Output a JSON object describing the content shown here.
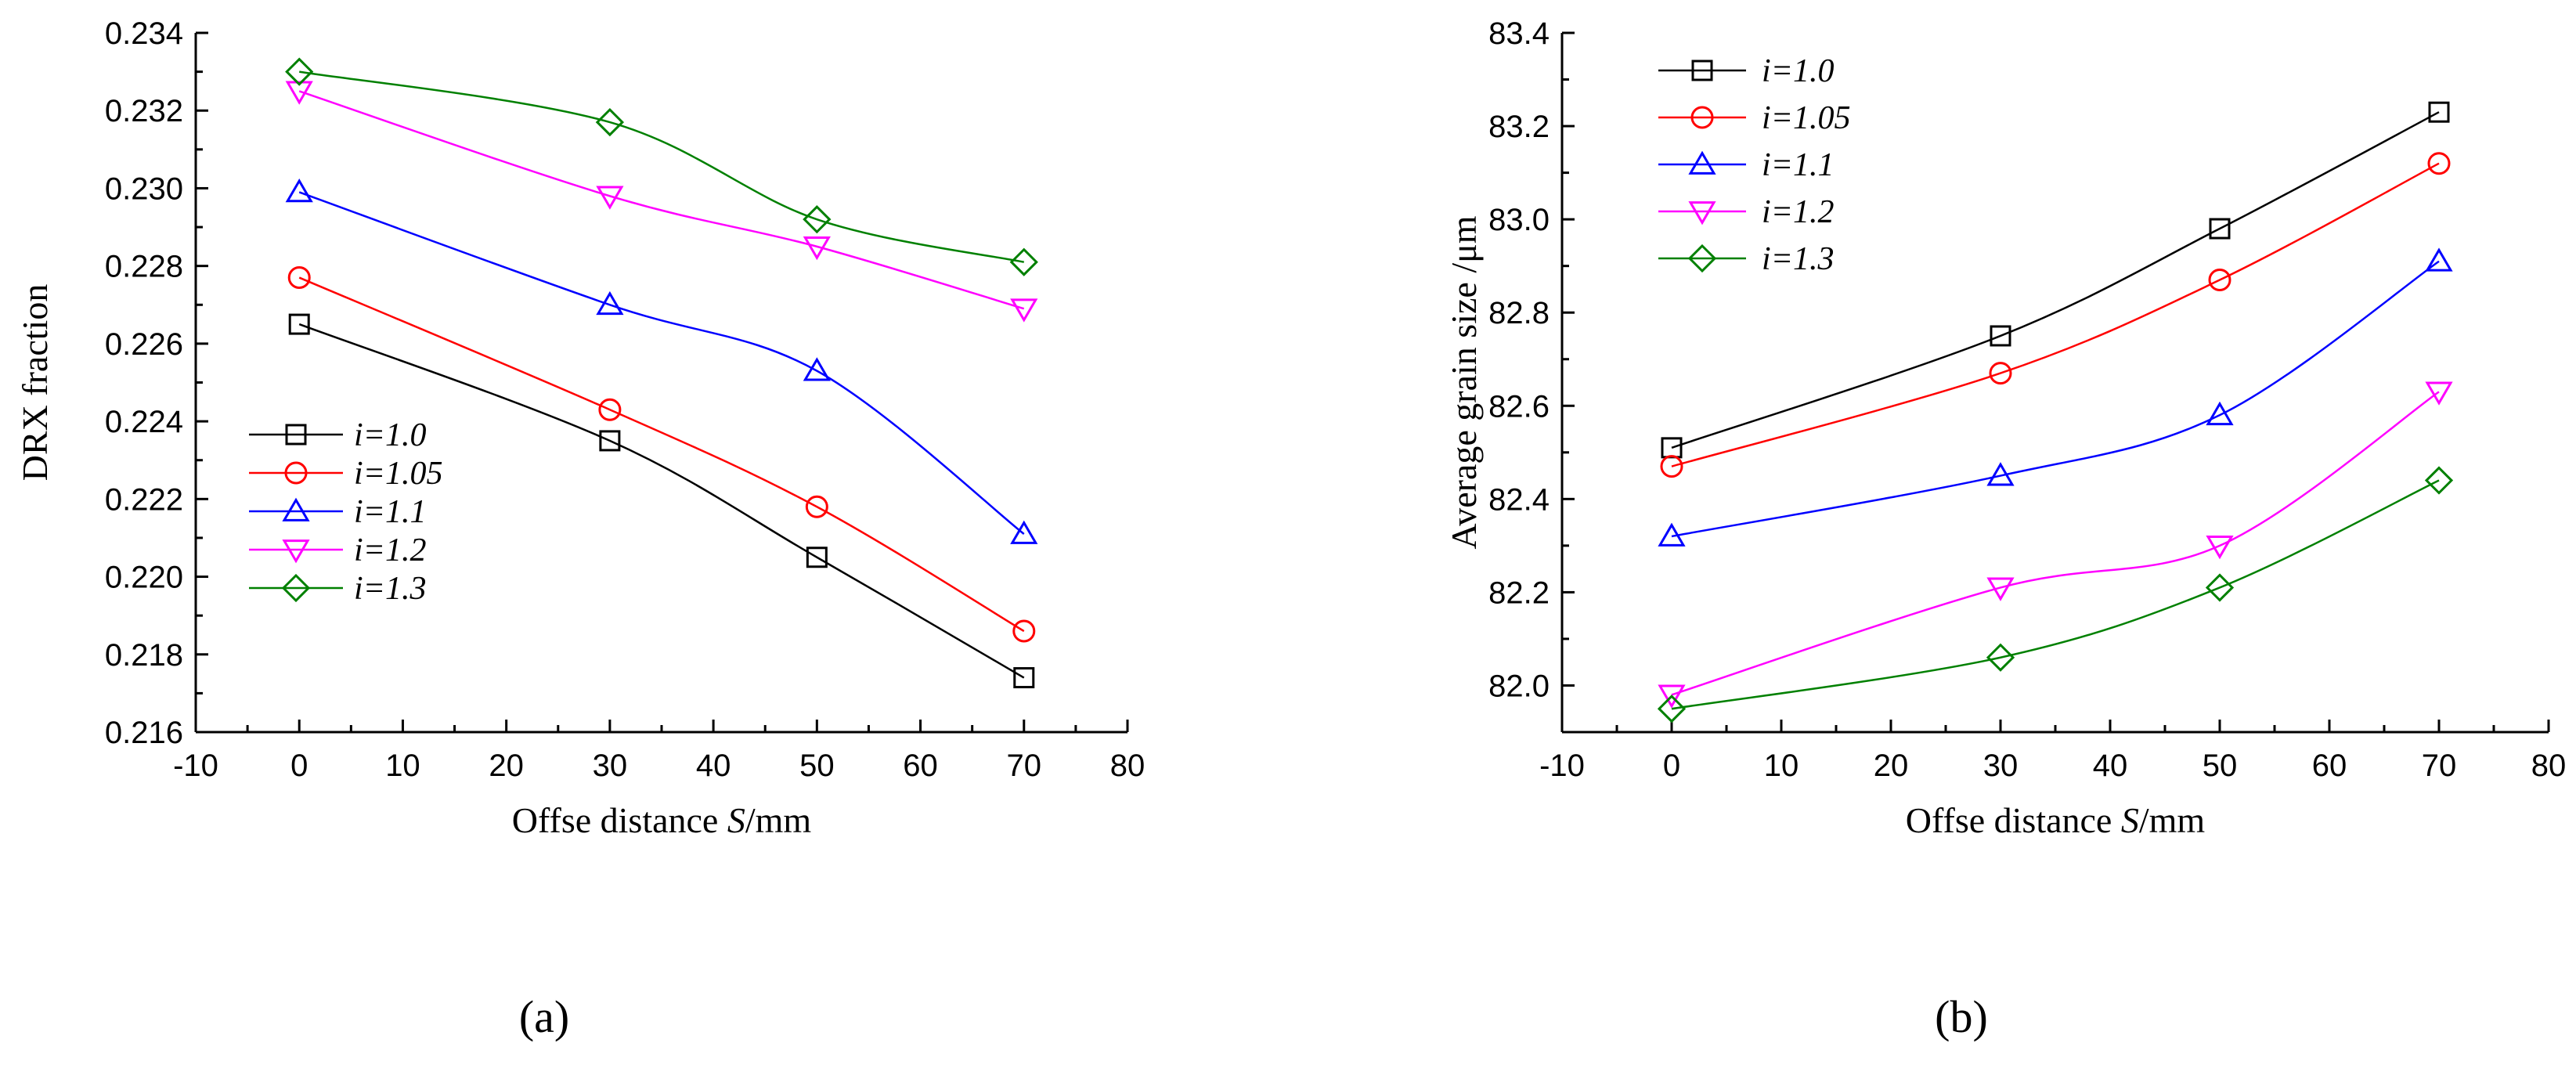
{
  "panel_labels": {
    "a": "(a)",
    "b": "(b)"
  },
  "chart_data": [
    {
      "id": "a",
      "type": "line",
      "title": "",
      "xlabel": {
        "prefix": "Offse distance ",
        "italic": "S",
        "suffix": "/mm"
      },
      "ylabel": "DRX fraction",
      "xlim": [
        -10,
        80
      ],
      "ylim": [
        0.216,
        0.234
      ],
      "xticks": [
        -10,
        0,
        10,
        20,
        30,
        40,
        50,
        60,
        70,
        80
      ],
      "yticks": [
        0.216,
        0.218,
        0.22,
        0.222,
        0.224,
        0.226,
        0.228,
        0.23,
        0.232,
        0.234
      ],
      "ytick_labels": [
        "0.216",
        "0.218",
        "0.220",
        "0.222",
        "0.224",
        "0.226",
        "0.228",
        "0.230",
        "0.232",
        "0.234"
      ],
      "x": [
        0,
        30,
        50,
        70
      ],
      "legend_position": "lower-left",
      "series": [
        {
          "name": "i=1.0",
          "color": "#000000",
          "marker": "square",
          "values": [
            0.2265,
            0.2235,
            0.2205,
            0.2174
          ]
        },
        {
          "name": "i=1.05",
          "color": "#ff0000",
          "marker": "circle",
          "values": [
            0.2277,
            0.2243,
            0.2218,
            0.2186
          ]
        },
        {
          "name": "i=1.1",
          "color": "#0000ff",
          "marker": "triangle-up",
          "values": [
            0.2299,
            0.227,
            0.2253,
            0.2211
          ]
        },
        {
          "name": "i=1.2",
          "color": "#ff00ff",
          "marker": "triangle-down",
          "values": [
            0.2325,
            0.2298,
            0.2285,
            0.2269
          ]
        },
        {
          "name": "i=1.3",
          "color": "#008000",
          "marker": "diamond",
          "values": [
            0.233,
            0.2317,
            0.2292,
            0.2281
          ]
        }
      ]
    },
    {
      "id": "b",
      "type": "line",
      "title": "",
      "xlabel": {
        "prefix": "Offse distance ",
        "italic": "S",
        "suffix": "/mm"
      },
      "ylabel": "Average grain size /μm",
      "xlim": [
        -10,
        80
      ],
      "ylim": [
        81.9,
        83.4
      ],
      "xticks": [
        -10,
        0,
        10,
        20,
        30,
        40,
        50,
        60,
        70,
        80
      ],
      "yticks": [
        82.0,
        82.2,
        82.4,
        82.6,
        82.8,
        83.0,
        83.2,
        83.4
      ],
      "ytick_labels": [
        "82.0",
        "82.2",
        "82.4",
        "82.6",
        "82.8",
        "83.0",
        "83.2",
        "83.4"
      ],
      "x": [
        0,
        30,
        50,
        70
      ],
      "legend_position": "top-left",
      "series": [
        {
          "name": "i=1.0",
          "color": "#000000",
          "marker": "square",
          "values": [
            82.51,
            82.75,
            82.98,
            83.23
          ]
        },
        {
          "name": "i=1.05",
          "color": "#ff0000",
          "marker": "circle",
          "values": [
            82.47,
            82.67,
            82.87,
            83.12
          ]
        },
        {
          "name": "i=1.1",
          "color": "#0000ff",
          "marker": "triangle-up",
          "values": [
            82.32,
            82.45,
            82.58,
            82.91
          ]
        },
        {
          "name": "i=1.2",
          "color": "#ff00ff",
          "marker": "triangle-down",
          "values": [
            81.98,
            82.21,
            82.3,
            82.63
          ]
        },
        {
          "name": "i=1.3",
          "color": "#008000",
          "marker": "diamond",
          "values": [
            81.95,
            82.06,
            82.21,
            82.44
          ]
        }
      ]
    }
  ]
}
